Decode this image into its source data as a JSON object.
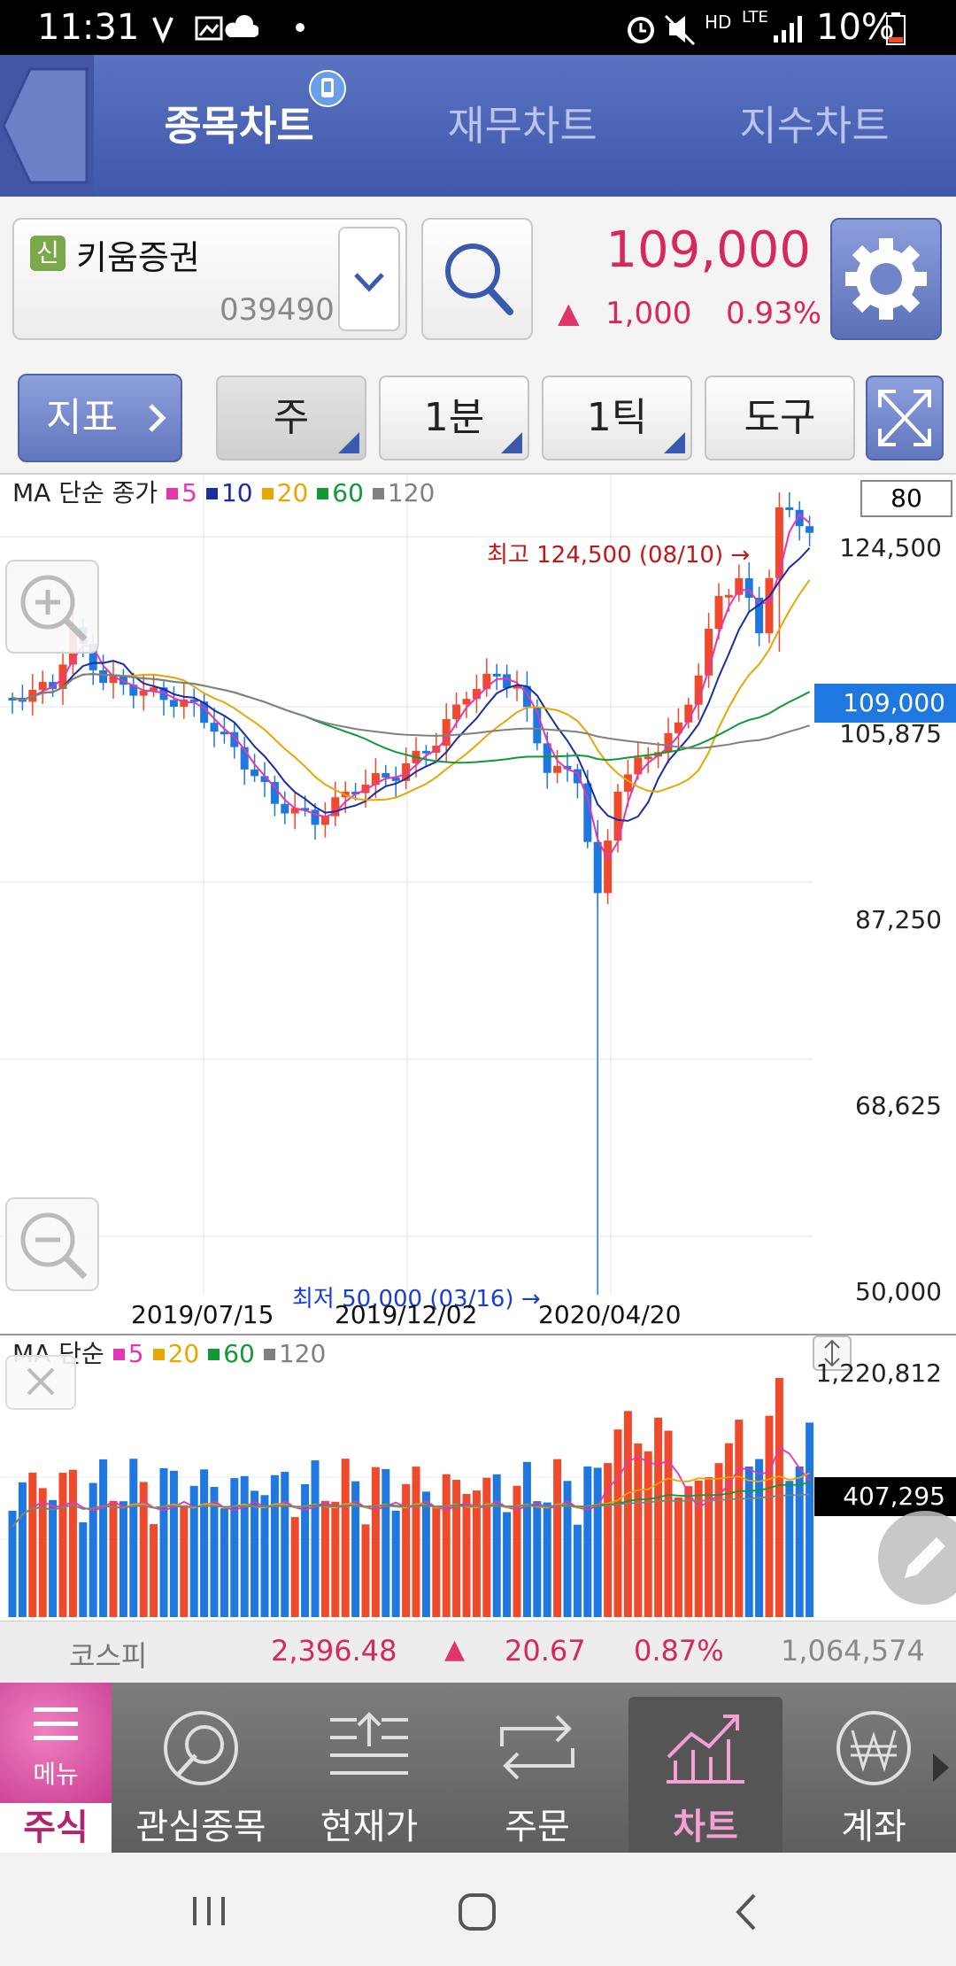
{
  "status": {
    "time": "11:31",
    "battery": "10%",
    "net_hd": "HD",
    "net_lte": "LTE"
  },
  "tabs": [
    {
      "label": "종목차트",
      "active": true
    },
    {
      "label": "재무차트",
      "active": false
    },
    {
      "label": "지수차트",
      "active": false
    }
  ],
  "stock": {
    "badge": "신",
    "name": "키움증권",
    "code": "039490",
    "price": "109,000",
    "change_arrow": "▲",
    "change": "1,000",
    "change_pct": "0.93%"
  },
  "toolbar": {
    "indicator_label": "지표",
    "period": "주",
    "minute": "1분",
    "tick": "1틱",
    "tools": "도구",
    "count": "80"
  },
  "price_chart": {
    "legend_prefix": "MA 단순 종가",
    "legend": [
      {
        "label": "5",
        "color": "#e535b3"
      },
      {
        "label": "10",
        "color": "#1a2ea0"
      },
      {
        "label": "20",
        "color": "#e8a600"
      },
      {
        "label": "60",
        "color": "#0f9a35"
      },
      {
        "label": "120",
        "color": "#808080"
      }
    ],
    "y_labels": [
      "124,500",
      "105,875",
      "87,250",
      "68,625",
      "50,000"
    ],
    "current_price_label": "109,000",
    "x_labels": [
      "2019/07/15",
      "2019/12/02",
      "2020/04/20"
    ],
    "high_annotation": "최고 124,500 (08/10) →",
    "low_annotation": "최저 50,000 (03/16) →"
  },
  "volume_chart": {
    "legend_prefix": "MA 단순",
    "legend": [
      {
        "label": "5",
        "color": "#e535b3"
      },
      {
        "label": "20",
        "color": "#e8a600"
      },
      {
        "label": "60",
        "color": "#0f9a35"
      },
      {
        "label": "120",
        "color": "#808080"
      }
    ],
    "max_label": "1,220,812",
    "current_label": "407,295"
  },
  "index_ticker": {
    "name": "코스피",
    "value": "2,396.48",
    "arrow": "▲",
    "change": "20.67",
    "change_pct": "0.87%",
    "volume": "1,064,574"
  },
  "bottom_nav": {
    "menu_label": "메뉴",
    "stock_label": "주식",
    "items": [
      {
        "label": "관심종목"
      },
      {
        "label": "현재가"
      },
      {
        "label": "주문"
      },
      {
        "label": "차트",
        "active": true
      },
      {
        "label": "계좌"
      }
    ]
  },
  "colors": {
    "up": "#f04a2c",
    "down": "#1e78e0",
    "header": "#4a62b5",
    "price_text": "#d6285a"
  }
}
